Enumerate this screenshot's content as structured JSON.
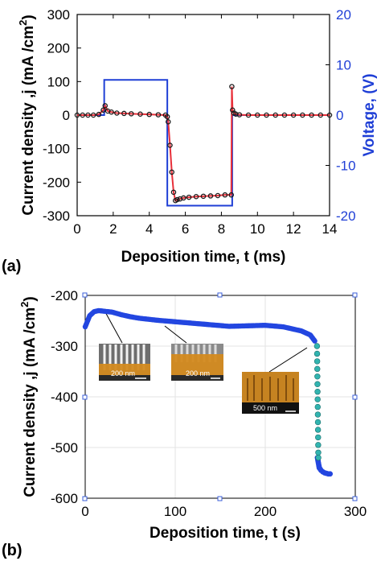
{
  "figure": {
    "panels": [
      "(a)",
      "(b)"
    ]
  },
  "chart_data": [
    {
      "type": "line",
      "panel": "(a)",
      "xlabel": "Deposition time, t (ms)",
      "ylabel": "Current density ,j (mA /cm",
      "ylabel_sup": "2",
      "ylabel_close": ")",
      "y2label": "Voltage, (V)",
      "xlim": [
        0,
        14
      ],
      "ylim": [
        -300,
        300
      ],
      "y2lim": [
        -20,
        20
      ],
      "xticks": [
        "0",
        "2",
        "4",
        "6",
        "8",
        "10",
        "12",
        "14"
      ],
      "yticks": [
        "300",
        "200",
        "100",
        "0",
        "-100",
        "-200",
        "-300"
      ],
      "y2ticks": [
        "20",
        "10",
        "0",
        "-10",
        "-20"
      ],
      "colors": {
        "current": "#e8303a",
        "markers": "#1a1a1a",
        "voltage": "#1f3fd6"
      },
      "series": [
        {
          "axis": "left",
          "x": [
            0,
            0.3,
            0.6,
            0.9,
            1.2,
            1.45,
            1.55,
            1.7,
            1.9,
            2.2,
            2.6,
            3,
            3.5,
            4,
            4.5,
            4.9,
            5.0,
            5.05,
            5.15,
            5.25,
            5.35,
            5.45,
            5.55,
            5.7,
            5.9,
            6.2,
            6.6,
            7,
            7.4,
            7.8,
            8.2,
            8.55,
            8.58,
            8.62,
            8.7,
            8.8,
            9,
            9.5,
            10,
            10.5,
            11,
            11.5,
            12,
            12.5,
            13,
            13.5,
            14
          ],
          "values": [
            0,
            0,
            0,
            0,
            2,
            15,
            28,
            12,
            9,
            6,
            5,
            4,
            3,
            2,
            1,
            0,
            -5,
            -20,
            -90,
            -170,
            -230,
            -255,
            -252,
            -250,
            -247,
            -245,
            -243,
            -242,
            -241,
            -240,
            -238,
            -238,
            85,
            15,
            6,
            3,
            1,
            0,
            0,
            0,
            0,
            0,
            0,
            0,
            0,
            0,
            0
          ]
        },
        {
          "axis": "right",
          "x": [
            0,
            1.5,
            1.5,
            5.0,
            5.0,
            8.6,
            8.6,
            14
          ],
          "values": [
            0,
            0,
            7,
            7,
            -18,
            -18,
            0,
            0
          ]
        }
      ]
    },
    {
      "type": "scatter",
      "panel": "(b)",
      "xlabel": "Deposition time, t (s)",
      "ylabel": "Current density ,j (mA /cm",
      "ylabel_sup": "2",
      "ylabel_close": ")",
      "xlim": [
        0,
        300
      ],
      "ylim": [
        -600,
        -200
      ],
      "xticks": [
        "0",
        "100",
        "200",
        "300"
      ],
      "yticks": [
        "-200",
        "-300",
        "-400",
        "-500",
        "-600"
      ],
      "grid": true,
      "colors": {
        "main": "#2346e0",
        "tail": "#32b4b0"
      },
      "insets": [
        {
          "scale_label": "200 nm"
        },
        {
          "scale_label": "200 nm"
        },
        {
          "scale_label": "500 nm"
        }
      ],
      "series": [
        {
          "x": [
            0,
            5,
            10,
            15,
            20,
            30,
            40,
            50,
            60,
            80,
            100,
            120,
            140,
            160,
            180,
            200,
            220,
            240,
            250,
            255,
            258,
            260,
            262,
            264,
            266,
            268,
            270,
            272
          ],
          "values": [
            -262,
            -240,
            -232,
            -230,
            -231,
            -233,
            -238,
            -242,
            -245,
            -249,
            -252,
            -255,
            -258,
            -261,
            -260,
            -259,
            -262,
            -270,
            -278,
            -290,
            -520,
            -540,
            -545,
            -548,
            -550,
            -551,
            -552,
            -552
          ]
        },
        {
          "x": [
            257.5,
            257.6,
            257.7,
            257.8,
            257.9,
            258,
            258.1,
            258.2,
            258.3,
            258.4,
            258.5,
            258.6,
            258.7,
            258.8,
            258.9,
            259
          ],
          "values": [
            -300,
            -315,
            -330,
            -345,
            -360,
            -375,
            -390,
            -405,
            -420,
            -435,
            -450,
            -465,
            -480,
            -495,
            -510,
            -520
          ]
        }
      ]
    }
  ]
}
